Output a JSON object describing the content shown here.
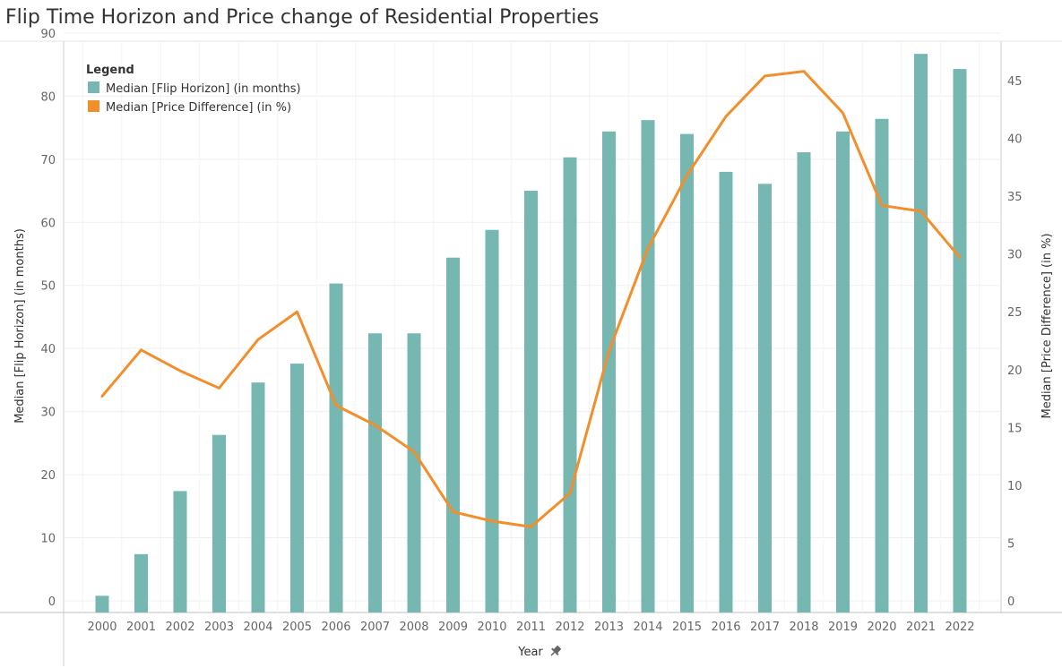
{
  "chart_data": {
    "type": "bar",
    "title": "Flip Time Horizon and Price change of Residential Properties",
    "xlabel": "Year",
    "ylabel": "Median [Flip Horizon] (in months)",
    "y2label": "Median [Price Difference] (in %)",
    "ylim": [
      0,
      90
    ],
    "y2lim": [
      0,
      47
    ],
    "yticks": [
      "0",
      "10",
      "20",
      "30",
      "40",
      "50",
      "60",
      "70",
      "80",
      "90"
    ],
    "y2ticks": [
      "0",
      "5",
      "10",
      "15",
      "20",
      "25",
      "30",
      "35",
      "40",
      "45"
    ],
    "grid": true,
    "categories": [
      "2000",
      "2001",
      "2002",
      "2003",
      "2004",
      "2005",
      "2006",
      "2007",
      "2008",
      "2009",
      "2010",
      "2011",
      "2012",
      "2013",
      "2014",
      "2015",
      "2016",
      "2017",
      "2018",
      "2019",
      "2020",
      "2021",
      "2022"
    ],
    "legend": {
      "title": "Legend",
      "placement": "top-left"
    },
    "series": [
      {
        "name": "Median [Flip Horizon] (in months)",
        "type": "bar",
        "axis": "left",
        "color": "#76b7b2",
        "values": [
          0.8,
          7.4,
          17.4,
          26.3,
          34.6,
          37.6,
          50.3,
          42.4,
          42.4,
          54.4,
          58.8,
          65.0,
          70.3,
          74.4,
          76.2,
          74.0,
          68.0,
          66.1,
          71.1,
          74.4,
          76.4,
          86.7,
          84.3
        ]
      },
      {
        "name": "Median [Price Difference] (in %)",
        "type": "line",
        "axis": "right",
        "color": "#f28e2b",
        "values": [
          17.7,
          21.7,
          19.9,
          18.4,
          22.6,
          25.0,
          16.9,
          15.2,
          12.9,
          7.7,
          6.9,
          6.4,
          9.3,
          21.6,
          30.5,
          36.8,
          41.9,
          45.4,
          45.8,
          42.2,
          34.2,
          33.7,
          29.7
        ]
      }
    ]
  }
}
